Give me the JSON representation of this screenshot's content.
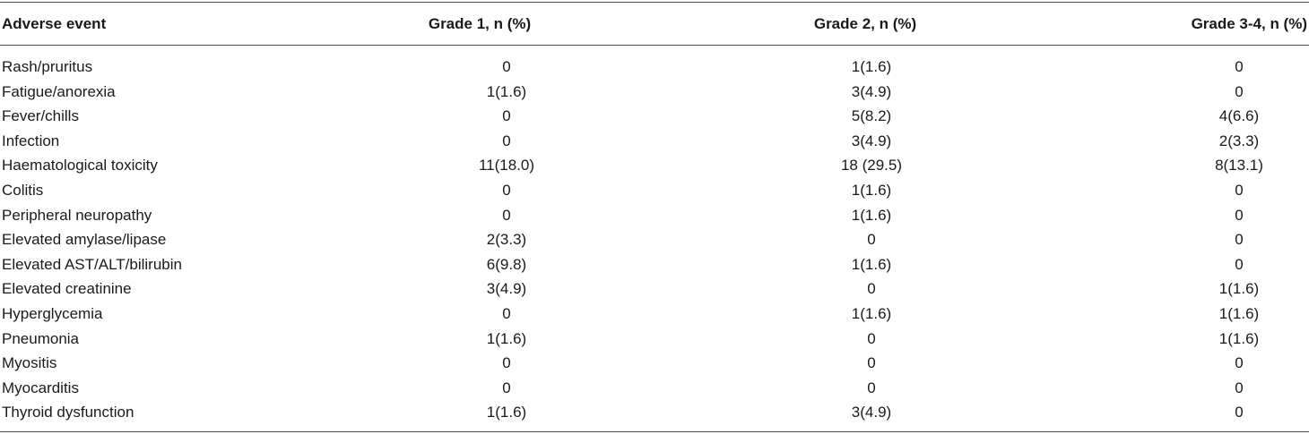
{
  "table": {
    "headers": [
      "Adverse event",
      "Grade 1, n (%)",
      "Grade 2, n (%)",
      "Grade 3-4, n (%)"
    ],
    "rows": [
      [
        "Rash/pruritus",
        "0",
        "1(1.6)",
        "0"
      ],
      [
        "Fatigue/anorexia",
        "1(1.6)",
        "3(4.9)",
        "0"
      ],
      [
        "Fever/chills",
        "0",
        "5(8.2)",
        "4(6.6)"
      ],
      [
        "Infection",
        "0",
        "3(4.9)",
        "2(3.3)"
      ],
      [
        "Haematological toxicity",
        "11(18.0)",
        "18 (29.5)",
        "8(13.1)"
      ],
      [
        "Colitis",
        "0",
        "1(1.6)",
        "0"
      ],
      [
        "Peripheral neuropathy",
        "0",
        "1(1.6)",
        "0"
      ],
      [
        "Elevated amylase/lipase",
        "2(3.3)",
        "0",
        "0"
      ],
      [
        "Elevated AST/ALT/bilirubin",
        "6(9.8)",
        "1(1.6)",
        "0"
      ],
      [
        "Elevated creatinine",
        "3(4.9)",
        "0",
        "1(1.6)"
      ],
      [
        "Hyperglycemia",
        "0",
        "1(1.6)",
        "1(1.6)"
      ],
      [
        "Pneumonia",
        "1(1.6)",
        "0",
        "1(1.6)"
      ],
      [
        "Myositis",
        "0",
        "0",
        "0"
      ],
      [
        "Myocarditis",
        "0",
        "0",
        "0"
      ],
      [
        "Thyroid dysfunction",
        "1(1.6)",
        "3(4.9)",
        "0"
      ]
    ]
  }
}
